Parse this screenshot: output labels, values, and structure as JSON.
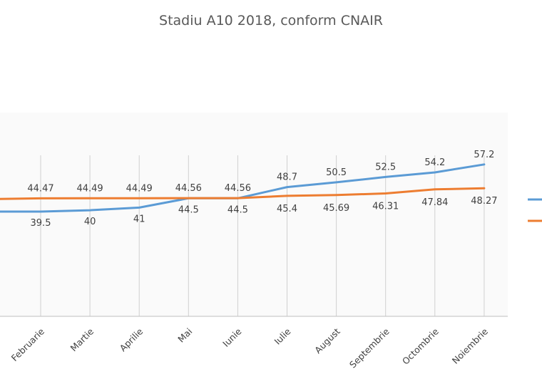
{
  "chart_data": {
    "type": "line",
    "title": "Stadiu A10 2018, conform CNAIR",
    "categories": [
      "Februarie",
      "Martie",
      "Aprilie",
      "Mai",
      "Iunie",
      "Iulie",
      "August",
      "Septembrie",
      "Octombrie",
      "Noiembrie"
    ],
    "series": [
      {
        "color": "#5B9BD5",
        "values": [
          39.5,
          40,
          41,
          44.5,
          44.5,
          48.7,
          50.5,
          52.5,
          54.2,
          57.2
        ]
      },
      {
        "color": "#ED7D31",
        "values": [
          44.47,
          44.49,
          44.49,
          44.56,
          44.56,
          45.4,
          45.69,
          46.31,
          47.84,
          48.27
        ]
      }
    ],
    "value_labels": [
      [
        "39.5",
        "40",
        "41",
        "44.5",
        "44.5",
        "48.7",
        "50.5",
        "52.5",
        "54.2",
        "57.2"
      ],
      [
        "44.47",
        "44.49",
        "44.49",
        "44.56",
        "44.56",
        "45.4",
        "45.69",
        "46.31",
        "47.84",
        "48.27"
      ]
    ],
    "grid": "vertical",
    "legend": "right"
  }
}
